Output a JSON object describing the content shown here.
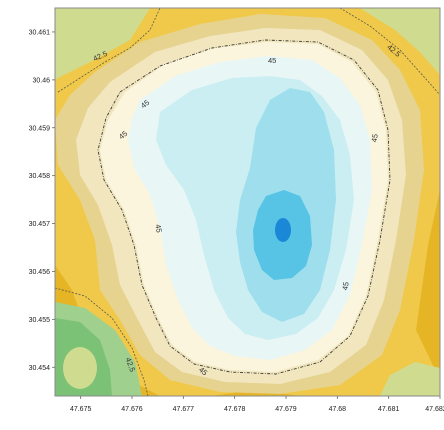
{
  "chart_data": {
    "type": "contour",
    "title": "",
    "xlabel": "",
    "ylabel": "",
    "xlim": [
      47.6745,
      47.682
    ],
    "ylim": [
      30.4534,
      30.4615
    ],
    "x_ticks": [
      "47.675",
      "47.676",
      "47.677",
      "47.678",
      "47.679",
      "47.68",
      "47.681",
      "47.682"
    ],
    "y_ticks": [
      "30.461",
      "30.46",
      "30.459",
      "30.458",
      "30.457",
      "30.456",
      "30.455",
      "30.454"
    ],
    "contour_line_labels": [
      "42.5",
      "45",
      "45",
      "45",
      "45",
      "45",
      "45",
      "42.5",
      "45",
      "42.5",
      "45"
    ],
    "colors": {
      "lowest": "#7cc276",
      "low": "#9fd08e",
      "low_mid": "#cfdb8f",
      "mid_low": "#e5b526",
      "mid": "#f0c94a",
      "mid_high": "#e6d390",
      "high_low": "#f1e6bd",
      "high": "#fbf5de",
      "higher": "#e9f6f6",
      "higher2": "#cbeef3",
      "peak_low": "#9fdeec",
      "peak_mid": "#57c4e5",
      "peak": "#1a88d6"
    }
  }
}
